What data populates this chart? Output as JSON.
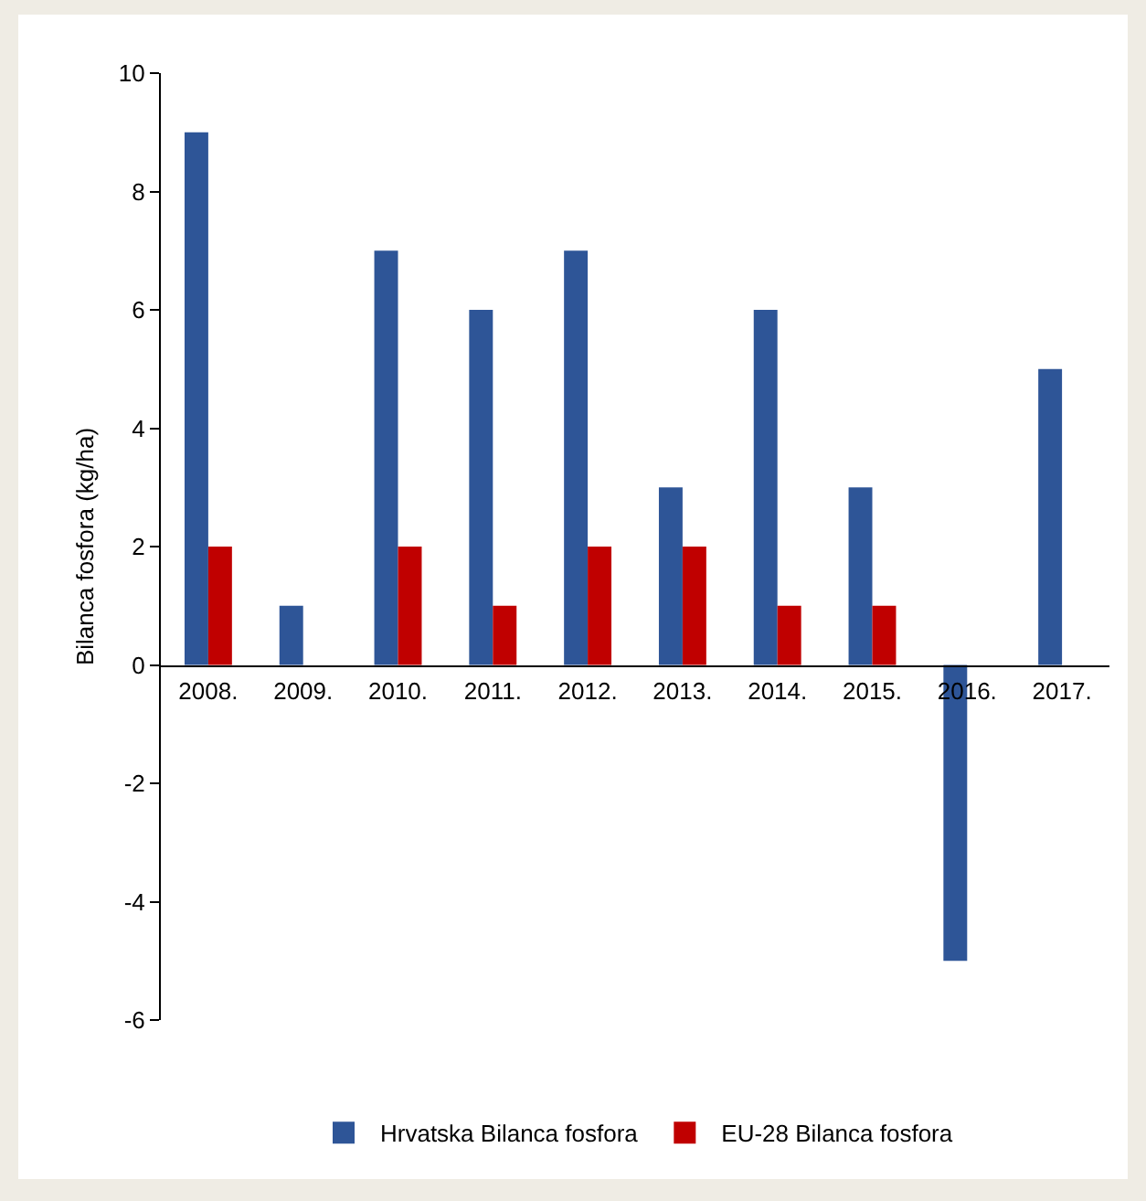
{
  "chart_data": {
    "type": "bar",
    "ylabel": "Bilanca fosfora (kg/ha)",
    "categories": [
      "2008.",
      "2009.",
      "2010.",
      "2011.",
      "2012.",
      "2013.",
      "2014.",
      "2015.",
      "2016.",
      "2017."
    ],
    "series": [
      {
        "name": "Hrvatska Bilanca fosfora",
        "color": "#2e5597",
        "values": [
          9,
          1,
          7,
          6,
          7,
          3,
          6,
          3,
          -5,
          5
        ]
      },
      {
        "name": "EU-28 Bilanca fosfora",
        "color": "#c00000",
        "values": [
          2,
          null,
          2,
          1,
          2,
          2,
          1,
          1,
          null,
          null
        ]
      }
    ],
    "ylim": [
      -6,
      10
    ],
    "yticks": [
      -6,
      -4,
      -2,
      0,
      2,
      4,
      6,
      8,
      10
    ],
    "grid": false,
    "legend": "bottom"
  }
}
